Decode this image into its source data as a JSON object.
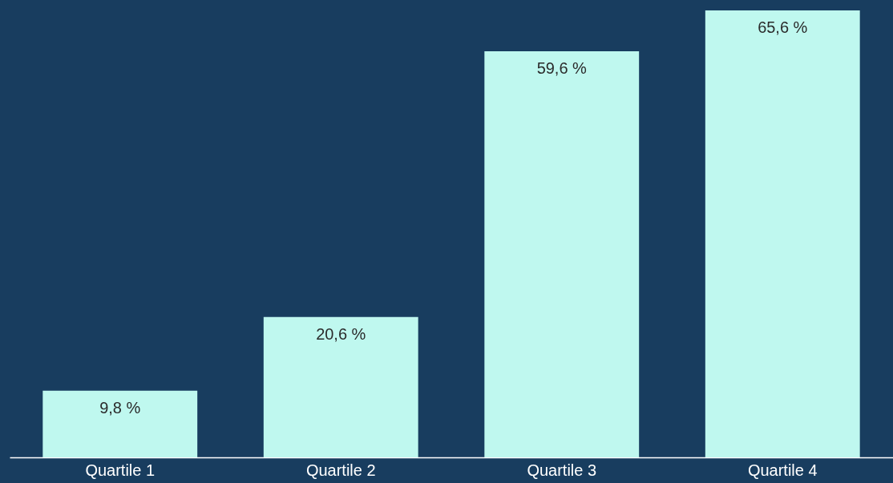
{
  "chart_data": {
    "type": "bar",
    "categories": [
      "Quartile 1",
      "Quartile 2",
      "Quartile 3",
      "Quartile 4"
    ],
    "values": [
      9.8,
      20.6,
      59.6,
      65.6
    ],
    "value_labels": [
      "9,8 %",
      "20,6 %",
      "59,6 %",
      "65,6 %"
    ],
    "color": "#bff8ef"
  }
}
